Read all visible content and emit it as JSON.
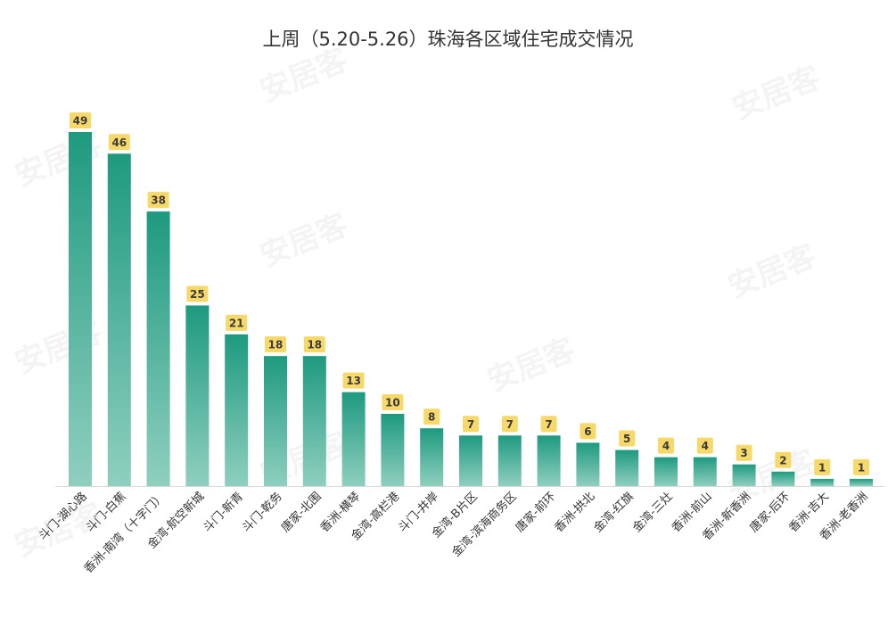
{
  "chart_data": {
    "type": "bar",
    "title": "上周（5.20-5.26）珠海各区域住宅成交情况",
    "xlabel": "",
    "ylabel": "",
    "categories": [
      "斗门-湖心路",
      "斗门-白蕉",
      "香洲-南湾（十字门）",
      "金湾-航空新城",
      "斗门-新青",
      "斗门-乾务",
      "唐家-北围",
      "香洲-横琴",
      "金湾-高栏港",
      "斗门-井岸",
      "金湾-B片区",
      "金湾-滨海商务区",
      "唐家-前环",
      "香洲-拱北",
      "金湾-红旗",
      "金湾-三灶",
      "香洲-前山",
      "香洲-新香洲",
      "唐家-后环",
      "香洲-吉大",
      "香洲-老香洲"
    ],
    "values": [
      49,
      46,
      38,
      25,
      21,
      18,
      18,
      13,
      10,
      8,
      7,
      7,
      7,
      6,
      5,
      4,
      4,
      3,
      2,
      1,
      1
    ],
    "ylim": [
      0,
      49
    ],
    "grid": false,
    "legend": "none",
    "colors": {
      "bar_top": "#1e9a7f",
      "bar_bottom": "#8fcfbf",
      "label_bg": "#f7d96a",
      "axis": "#d9d9d9"
    }
  },
  "watermark": "安居客"
}
